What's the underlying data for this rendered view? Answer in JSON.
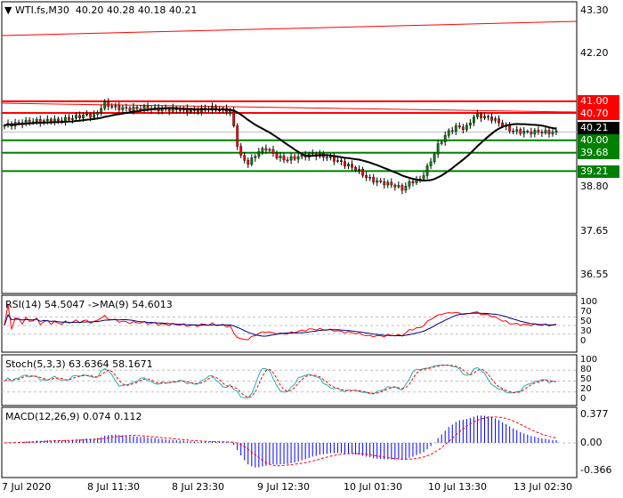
{
  "header": {
    "symbol": "WTI.fs,M30",
    "ohlc": "40.20 40.28 40.18 40.21"
  },
  "price_axis": [
    "43.30",
    "42.20",
    "38.80",
    "37.65",
    "36.55"
  ],
  "levels": [
    {
      "label": "41.00",
      "price": 41.0,
      "color": "#ff0000"
    },
    {
      "label": "40.70",
      "price": 40.7,
      "color": "#ff0000"
    },
    {
      "label": "40.21",
      "price": 40.21,
      "color": "#000000"
    },
    {
      "label": "40.00",
      "price": 40.0,
      "color": "#008000"
    },
    {
      "label": "39.68",
      "price": 39.68,
      "color": "#008000"
    },
    {
      "label": "39.21",
      "price": 39.21,
      "color": "#008000"
    }
  ],
  "rsi": {
    "title": "RSI(14) 54.5047  ->MA(9) 54.6013",
    "axis": [
      "100",
      "70",
      "50",
      "30",
      "0"
    ]
  },
  "stoch": {
    "title": "Stoch(5,3,3) 63.6364 58.1671",
    "axis": [
      "100",
      "80",
      "50",
      "20",
      "0"
    ]
  },
  "macd": {
    "title": "MACD(12,26,9) 0.074 0.112",
    "axis": [
      "0.377",
      "0.00",
      "-0.366"
    ]
  },
  "time_axis": [
    "7 Jul 2020",
    "8 Jul 11:30",
    "8 Jul 23:30",
    "9 Jul 12:30",
    "10 Jul 01:30",
    "10 Jul 13:30",
    "13 Jul 02:30"
  ],
  "price_path": [
    40.38,
    40.42,
    40.45,
    40.5,
    40.48,
    40.52,
    40.5,
    40.55,
    40.6,
    40.65,
    40.62,
    40.95,
    40.85,
    40.82,
    40.8,
    40.83,
    40.82,
    40.8,
    40.78,
    40.8,
    40.77,
    40.75,
    40.8,
    40.82,
    40.78,
    40.75,
    39.6,
    39.4,
    39.7,
    39.8,
    39.6,
    39.5,
    39.55,
    39.6,
    39.65,
    39.6,
    39.55,
    39.45,
    39.35,
    39.25,
    39.05,
    38.95,
    38.9,
    38.85,
    38.75,
    38.95,
    39.0,
    39.4,
    39.9,
    40.2,
    40.35,
    40.3,
    40.65,
    40.6,
    40.55,
    40.4,
    40.25,
    40.22,
    40.2,
    40.22,
    40.2,
    40.21
  ],
  "colors": {
    "bull": "#008000",
    "bear": "#ff0000",
    "ma": "#000000",
    "rsi": "#ff0000",
    "rsi_ma": "#000080",
    "stoch_main": "#20b2aa",
    "stoch_signal": "#ff0000",
    "macd_hist": "#0000ff",
    "macd_signal": "#ff0000"
  }
}
